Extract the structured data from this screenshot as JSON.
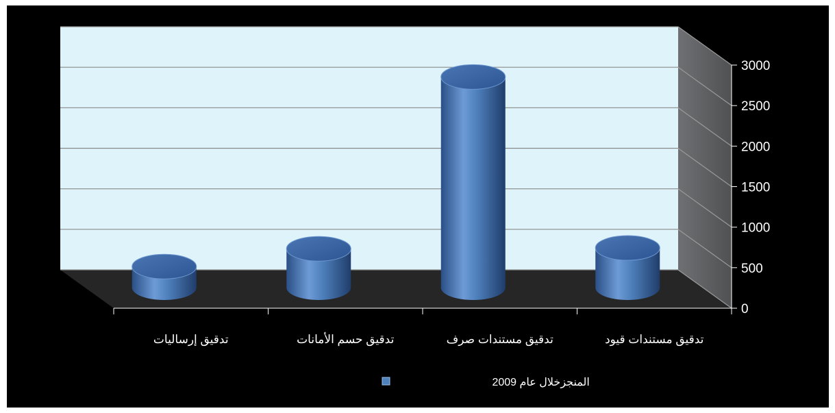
{
  "chart_data": {
    "type": "bar",
    "style": "3d-cylinder",
    "categories": [
      "تدقيق مستندات قيود",
      "تدقيق مستندات صرف",
      "تدقيق حسم الأمانات",
      "تدقيق إرساليات"
    ],
    "series": [
      {
        "name": "المنجزخلال عام 2009",
        "values": [
          490,
          2600,
          480,
          260
        ]
      }
    ],
    "yaxis": {
      "min": 0,
      "max": 3000,
      "ticks": [
        "0",
        "500",
        "1000",
        "1500",
        "2000",
        "2500",
        "3000"
      ],
      "position": "right"
    },
    "xaxis": {
      "direction": "right-to-left"
    },
    "grid": true,
    "legend": {
      "position": "bottom"
    },
    "colors": {
      "bar": "#4f81bd",
      "back_wall": "#dff3fb",
      "side_wall": "#5f6163",
      "floor": "#262626",
      "background": "#000000",
      "text": "#ffffff"
    }
  }
}
